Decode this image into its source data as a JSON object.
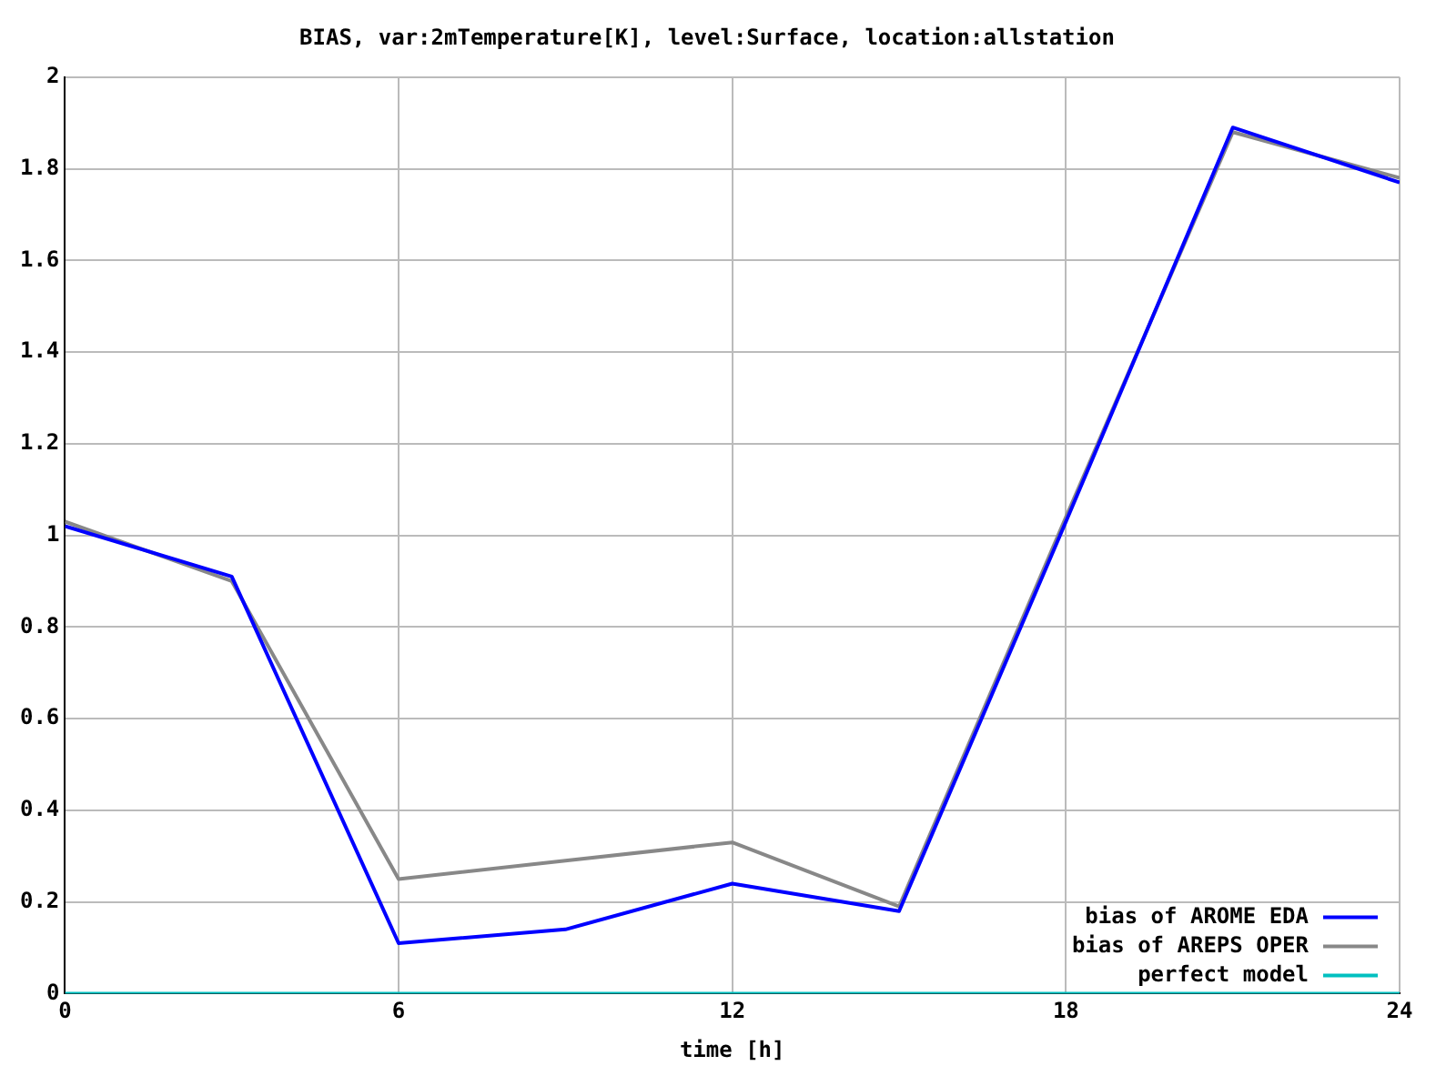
{
  "chart_data": {
    "type": "line",
    "title": "BIAS, var:2mTemperature[K], level:Surface, location:allstation",
    "xlabel": "time [h]",
    "x": [
      0,
      3,
      6,
      9,
      12,
      15,
      18,
      21,
      24
    ],
    "series": [
      {
        "name": "bias of AROME EDA",
        "color": "#0000ff",
        "values": [
          1.02,
          0.91,
          0.11,
          0.14,
          0.24,
          0.18,
          1.03,
          1.89,
          1.77
        ]
      },
      {
        "name": "bias of AREPS OPER",
        "color": "#888888",
        "values": [
          1.03,
          0.9,
          0.25,
          0.29,
          0.33,
          0.19,
          1.04,
          1.88,
          1.78
        ]
      },
      {
        "name": "perfect model",
        "color": "#00c0c0",
        "values": [
          0,
          0,
          0,
          0,
          0,
          0,
          0,
          0,
          0
        ]
      }
    ],
    "xlim": [
      0,
      24
    ],
    "xticks": [
      0,
      6,
      12,
      18,
      24
    ],
    "ylim": [
      0,
      2
    ],
    "yticks": [
      0,
      0.2,
      0.4,
      0.6,
      0.8,
      1,
      1.2,
      1.4,
      1.6,
      1.8,
      2
    ],
    "grid": true,
    "legend": "bottom right",
    "marker": "none",
    "line_style": "solid"
  }
}
